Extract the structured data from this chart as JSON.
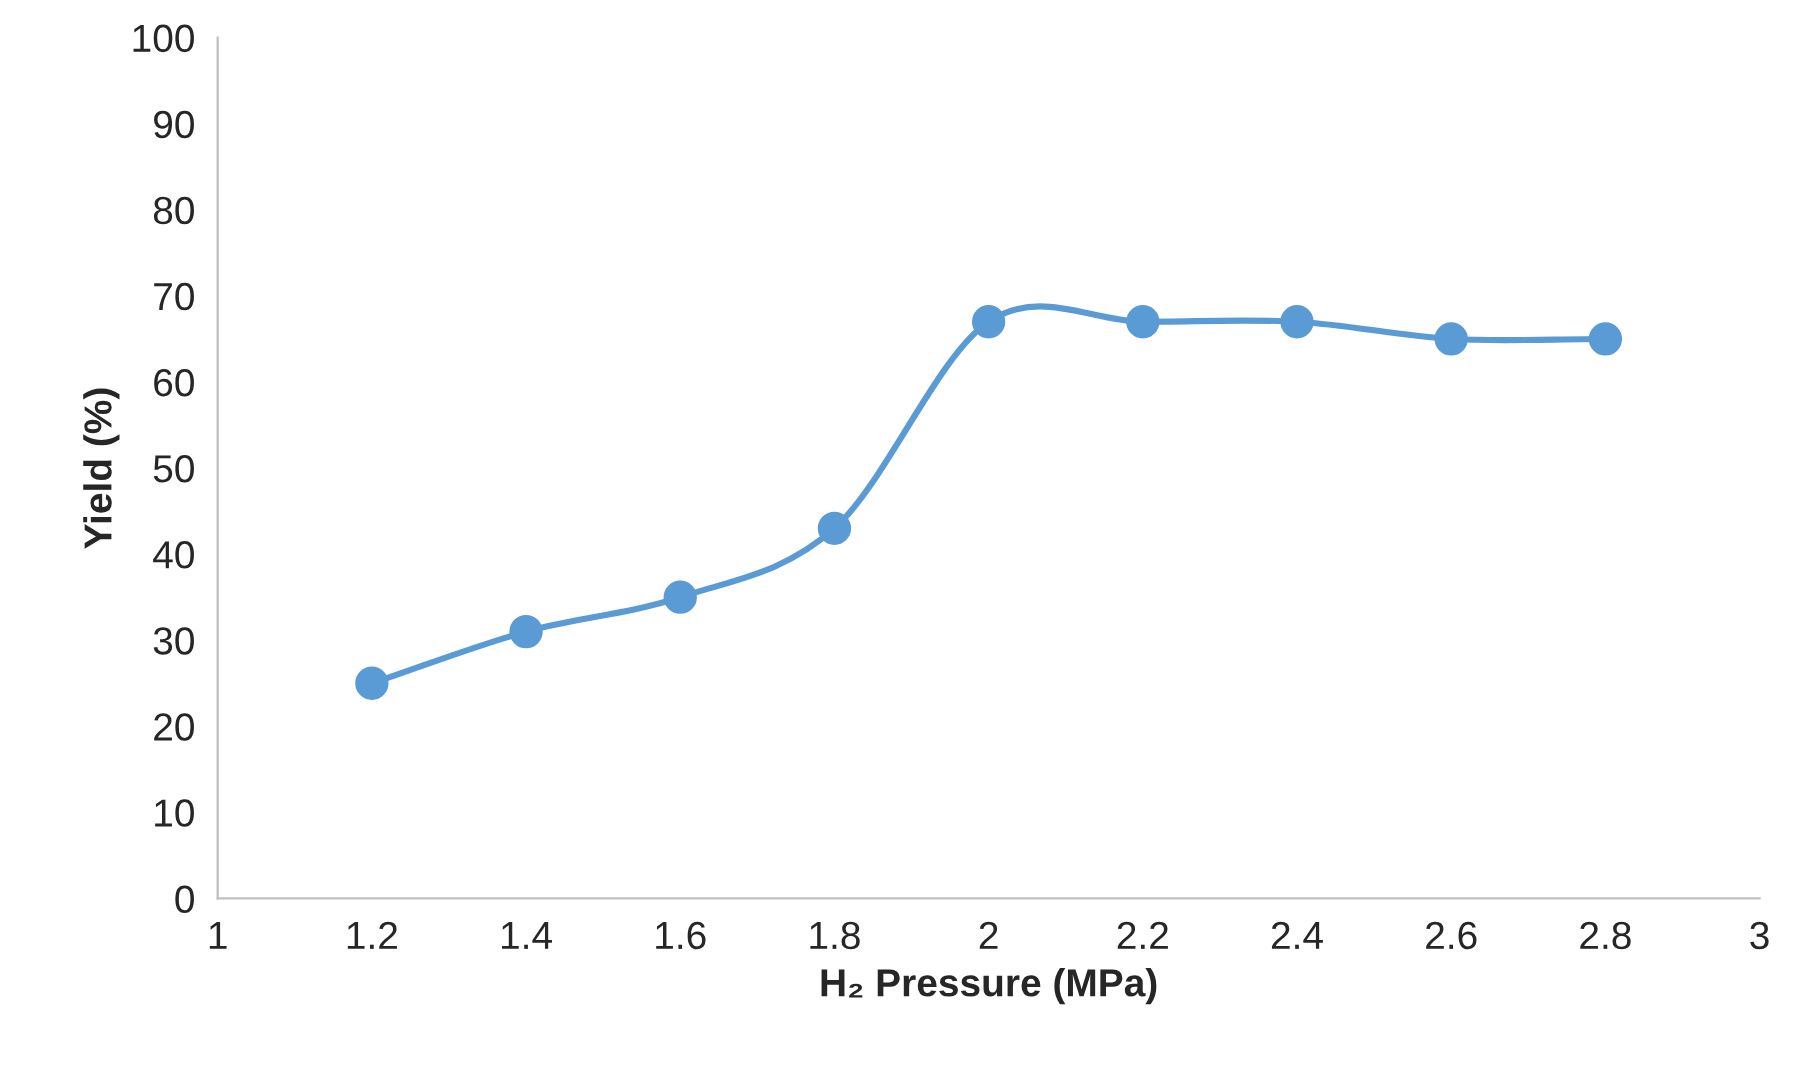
{
  "chart_data": {
    "type": "line",
    "xlabel": "H₂ Pressure (MPa)",
    "ylabel": "Yield (%)",
    "x": [
      1.2,
      1.4,
      1.6,
      1.8,
      2,
      2.2,
      2.4,
      2.6,
      2.8
    ],
    "series": [
      {
        "color": "#5b9bd5",
        "values": [
          25,
          31,
          35,
          43,
          67,
          67,
          67,
          65,
          65
        ]
      }
    ],
    "xlim": [
      1,
      3
    ],
    "xticks": [
      1,
      1.2,
      1.4,
      1.6,
      1.8,
      2,
      2.2,
      2.4,
      2.6,
      2.8,
      3
    ],
    "ylim": [
      0,
      100
    ],
    "yticks": [
      0,
      10,
      20,
      30,
      40,
      50,
      60,
      70,
      80,
      90,
      100
    ],
    "grid": false,
    "marker": "circle",
    "line_style": "solid"
  }
}
